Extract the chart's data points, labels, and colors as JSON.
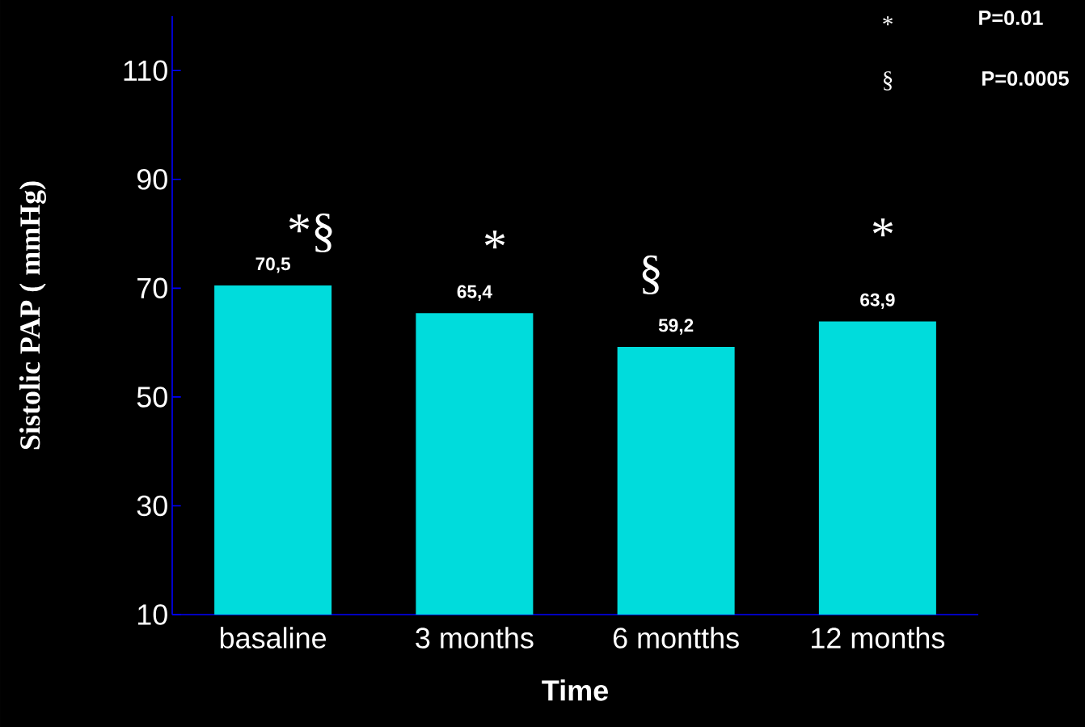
{
  "chart_data": {
    "type": "bar",
    "categories": [
      "basaline",
      "3 months",
      "6 montths",
      "12 months"
    ],
    "values": [
      70.5,
      65.4,
      59.2,
      63.9
    ],
    "value_labels": [
      "70,5",
      "65,4",
      "59,2",
      "63,9"
    ],
    "color": "#00dcdc",
    "xlabel": "Time",
    "ylabel": "Sistolic  PAP ( mmHg)",
    "ylim": [
      10,
      120
    ],
    "yticks": [
      10,
      30,
      50,
      70,
      90,
      110
    ],
    "grid": false,
    "annotations": [
      "*§",
      "*",
      "§",
      "*",
      "*",
      "P=0.01",
      "§",
      "P=0.0005"
    ]
  }
}
